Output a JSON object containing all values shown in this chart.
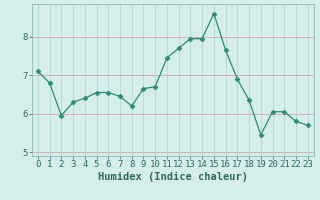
{
  "x": [
    0,
    1,
    2,
    3,
    4,
    5,
    6,
    7,
    8,
    9,
    10,
    11,
    12,
    13,
    14,
    15,
    16,
    17,
    18,
    19,
    20,
    21,
    22,
    23
  ],
  "y": [
    7.1,
    6.8,
    5.95,
    6.3,
    6.4,
    6.55,
    6.55,
    6.45,
    6.2,
    6.65,
    6.7,
    7.45,
    7.7,
    7.95,
    7.95,
    8.6,
    7.65,
    6.9,
    6.35,
    5.45,
    6.05,
    6.05,
    5.8,
    5.7
  ],
  "line_color": "#2d8b7a",
  "marker": "D",
  "marker_size": 2.5,
  "bg_color": "#d5eeeb",
  "grid_color_v": "#c0dedd",
  "grid_color_h_minor": "#e8c8c8",
  "axis_color": "#2d6b62",
  "xlabel": "Humidex (Indice chaleur)",
  "xlabel_fontsize": 7.5,
  "tick_fontsize": 6.5,
  "xlim": [
    -0.5,
    23.5
  ],
  "ylim": [
    4.9,
    8.85
  ],
  "yticks": [
    5,
    6,
    7,
    8
  ],
  "xticks": [
    0,
    1,
    2,
    3,
    4,
    5,
    6,
    7,
    8,
    9,
    10,
    11,
    12,
    13,
    14,
    15,
    16,
    17,
    18,
    19,
    20,
    21,
    22,
    23
  ]
}
